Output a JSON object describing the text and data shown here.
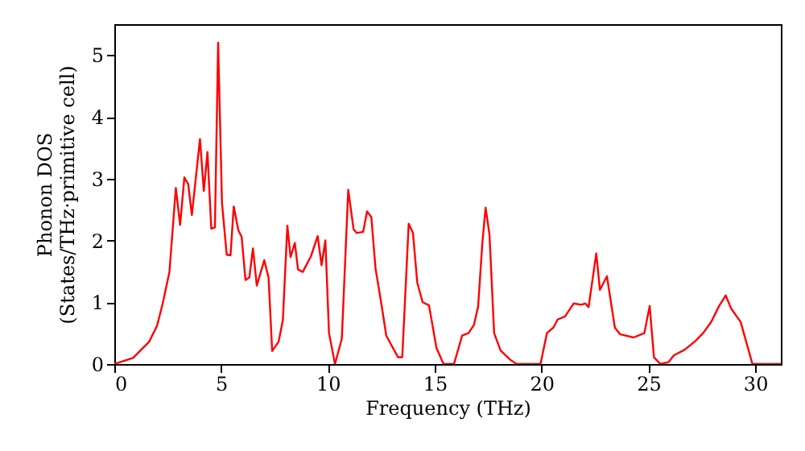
{
  "chart_data": {
    "type": "line",
    "xlabel": "Frequency (THz)",
    "ylabel": "Phonon DOS\n(States/THz·primitive cell)",
    "xlim": [
      0,
      31.2
    ],
    "ylim": [
      0,
      5.5
    ],
    "xticks": [
      0,
      5,
      10,
      15,
      20,
      25,
      30
    ],
    "yticks": [
      0,
      1,
      2,
      3,
      4,
      5
    ],
    "grid": false,
    "marker": "none",
    "line_style": "solid",
    "series": [
      {
        "color": "#ff0000",
        "x": [
          0,
          0.88,
          1.63,
          2.0,
          2.26,
          2.58,
          2.88,
          3.08,
          3.28,
          3.46,
          3.63,
          4.01,
          4.19,
          4.36,
          4.54,
          4.71,
          4.86,
          5.04,
          5.26,
          5.44,
          5.59,
          5.81,
          5.96,
          6.14,
          6.32,
          6.49,
          6.67,
          7.02,
          7.22,
          7.39,
          7.69,
          7.89,
          8.1,
          8.25,
          8.45,
          8.6,
          8.82,
          9.2,
          9.52,
          9.7,
          9.88,
          10.05,
          10.33,
          10.65,
          10.95,
          11.2,
          11.35,
          11.65,
          11.83,
          12.03,
          12.23,
          12.48,
          12.73,
          13.28,
          13.48,
          13.78,
          13.98,
          14.18,
          14.43,
          14.73,
          15.08,
          15.41,
          15.9,
          16.28,
          16.58,
          16.83,
          17.03,
          17.23,
          17.38,
          17.56,
          17.78,
          18.08,
          18.53,
          18.83,
          19.95,
          20.25,
          20.55,
          20.75,
          21.1,
          21.5,
          21.85,
          22.05,
          22.2,
          22.56,
          22.73,
          23.06,
          23.43,
          23.68,
          24.31,
          24.81,
          25.06,
          25.26,
          25.56,
          25.94,
          26.19,
          26.69,
          27.19,
          27.56,
          27.94,
          28.31,
          28.62,
          28.87,
          29.32,
          29.87,
          31.2
        ],
        "values": [
          0,
          0.1,
          0.36,
          0.62,
          0.97,
          1.49,
          2.85,
          2.25,
          3.02,
          2.91,
          2.41,
          3.64,
          2.8,
          3.43,
          2.19,
          2.21,
          5.2,
          2.61,
          1.77,
          1.76,
          2.55,
          2.16,
          2.06,
          1.36,
          1.4,
          1.87,
          1.27,
          1.68,
          1.4,
          0.21,
          0.36,
          0.71,
          2.24,
          1.73,
          1.96,
          1.53,
          1.49,
          1.74,
          2.07,
          1.6,
          2.0,
          0.5,
          0,
          0.41,
          2.82,
          2.18,
          2.12,
          2.14,
          2.47,
          2.38,
          1.54,
          1.02,
          0.46,
          0.11,
          0.11,
          2.27,
          2.12,
          1.32,
          1.0,
          0.95,
          0.26,
          0,
          0,
          0.46,
          0.5,
          0.63,
          0.93,
          1.97,
          2.53,
          2.1,
          0.5,
          0.22,
          0.07,
          0,
          0,
          0.5,
          0.59,
          0.72,
          0.77,
          0.98,
          0.96,
          0.98,
          0.92,
          1.79,
          1.2,
          1.42,
          0.59,
          0.48,
          0.43,
          0.5,
          0.94,
          0.11,
          0,
          0.03,
          0.14,
          0.23,
          0.37,
          0.5,
          0.68,
          0.94,
          1.11,
          0.9,
          0.68,
          0,
          0
        ]
      }
    ]
  }
}
